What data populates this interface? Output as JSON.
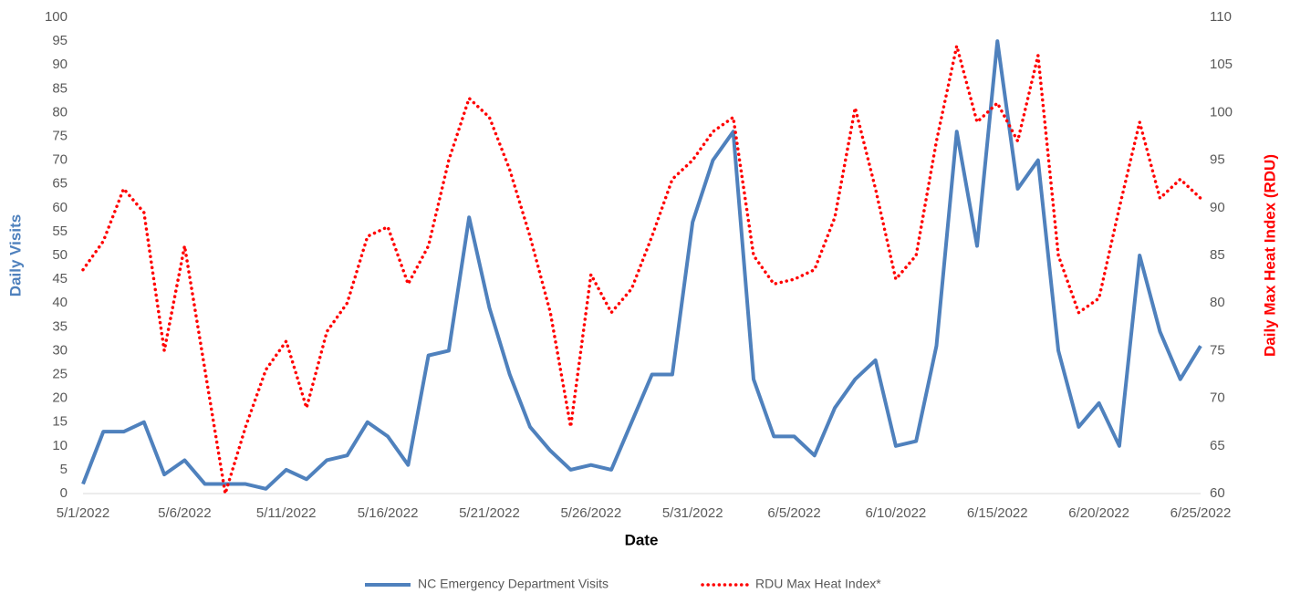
{
  "chart_data": {
    "type": "line",
    "x_label": "Date",
    "y_label": "Daily Visits",
    "y2_label": "Daily Max Heat Index (RDU)",
    "categories": [
      "5/1/2022",
      null,
      null,
      null,
      null,
      "5/6/2022",
      null,
      null,
      null,
      null,
      "5/11/2022",
      null,
      null,
      null,
      null,
      "5/16/2022",
      null,
      null,
      null,
      null,
      "5/21/2022",
      null,
      null,
      null,
      null,
      "5/26/2022",
      null,
      null,
      null,
      null,
      "5/31/2022",
      null,
      null,
      null,
      null,
      "6/5/2022",
      null,
      null,
      null,
      null,
      "6/10/2022",
      null,
      null,
      null,
      null,
      "6/15/2022",
      null,
      null,
      null,
      null,
      "6/20/2022",
      null,
      null,
      null,
      null,
      "6/25/2022"
    ],
    "ylim": [
      0,
      100
    ],
    "yticks": [
      0,
      5,
      10,
      15,
      20,
      25,
      30,
      35,
      40,
      45,
      50,
      55,
      60,
      65,
      70,
      75,
      80,
      85,
      90,
      95,
      100
    ],
    "y2lim": [
      60,
      110
    ],
    "y2ticks": [
      60,
      65,
      70,
      75,
      80,
      85,
      90,
      95,
      100,
      105,
      110
    ],
    "grid": false,
    "legend": "bottom",
    "series": [
      {
        "name": "NC Emergency Department Visits",
        "color": "#4f81bd",
        "style": "solid",
        "values": [
          2,
          13,
          13,
          15,
          4,
          7,
          2,
          2,
          2,
          1,
          5,
          3,
          7,
          8,
          15,
          12,
          6,
          29,
          30,
          58,
          39,
          25,
          14,
          9,
          5,
          6,
          5,
          15,
          25,
          25,
          57,
          70,
          76,
          24,
          12,
          12,
          8,
          18,
          24,
          28,
          10,
          11,
          31,
          76,
          52,
          95,
          64,
          70,
          30,
          14,
          19,
          10,
          50,
          34,
          24,
          31
        ]
      },
      {
        "name": "RDU Max Heat Index*",
        "color": "#ff0000",
        "style": "dotted",
        "axis": "y2",
        "values": [
          83.5,
          86.5,
          92,
          89.5,
          75,
          86,
          73,
          60,
          67,
          73,
          76,
          69,
          77,
          80,
          87,
          88,
          82,
          86,
          95,
          101.5,
          99.5,
          94,
          87,
          79,
          67,
          83,
          79,
          81.5,
          87,
          93,
          95,
          98,
          99.5,
          85,
          82,
          82.5,
          83.5,
          89,
          100.5,
          92,
          82.5,
          85,
          97,
          107,
          99,
          101,
          97,
          106,
          85,
          79,
          80.5,
          90,
          99,
          91,
          93,
          91
        ]
      }
    ]
  }
}
